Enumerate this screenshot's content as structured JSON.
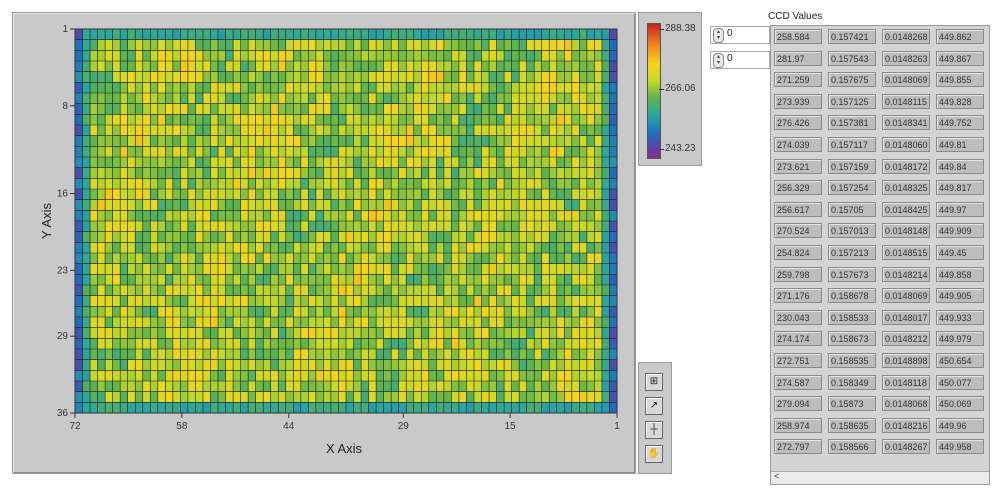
{
  "graph": {
    "x_axis_label": "X Axis",
    "y_axis_label": "Y Axis",
    "x_ticks": [
      "72",
      "58",
      "44",
      "29",
      "15",
      "1"
    ],
    "y_ticks": [
      "1",
      "8",
      "16",
      "23",
      "29",
      "36"
    ],
    "x_range": [
      72,
      1
    ],
    "y_range": [
      1,
      36
    ],
    "cols": 72,
    "rows": 36
  },
  "color_ramp": {
    "max": "288.38",
    "mid": "266.06",
    "min": "243.23",
    "colors": [
      "#c8201f",
      "#ee7a1e",
      "#f5d51d",
      "#c7da29",
      "#5fb44b",
      "#29a5a2",
      "#1f6dc0",
      "#5a43a8",
      "#8c2d8c"
    ]
  },
  "palette": {
    "buttons": [
      {
        "name": "graph-palette-zoom-button",
        "icon": "zoom-icon",
        "glyph": "⊞"
      },
      {
        "name": "graph-palette-pan-button",
        "icon": "pan-icon",
        "glyph": "↗"
      },
      {
        "name": "graph-palette-cursor-button",
        "icon": "cursor-icon",
        "glyph": "┼"
      },
      {
        "name": "graph-palette-hand-button",
        "icon": "hand-icon",
        "glyph": "✋"
      }
    ]
  },
  "index_controls": [
    {
      "value": "0"
    },
    {
      "value": "0"
    }
  ],
  "ccd": {
    "label": "CCD Values",
    "rows": [
      [
        "258.584",
        "0.157421",
        "0.0148268",
        "449.862"
      ],
      [
        "281.97",
        "0.157543",
        "0.0148263",
        "449.867"
      ],
      [
        "271.259",
        "0.157675",
        "0.0148069",
        "449.855"
      ],
      [
        "273.939",
        "0.157125",
        "0.0148115",
        "449.828"
      ],
      [
        "276.426",
        "0.157381",
        "0.0148341",
        "449.752"
      ],
      [
        "274.039",
        "0.157117",
        "0.0148060",
        "449.81"
      ],
      [
        "273.621",
        "0.157159",
        "0.0148172",
        "449.84"
      ],
      [
        "256.329",
        "0.157254",
        "0.0148325",
        "449.817"
      ],
      [
        "256.617",
        "0.15705",
        "0.0148425",
        "449.97"
      ],
      [
        "270.524",
        "0.157013",
        "0.0148148",
        "449.909"
      ],
      [
        "254.824",
        "0.157213",
        "0.0148515",
        "449.45"
      ],
      [
        "259.798",
        "0.157673",
        "0.0148214",
        "449.858"
      ],
      [
        "271.176",
        "0.158678",
        "0.0148069",
        "449.905"
      ],
      [
        "230.043",
        "0.158533",
        "0.0148017",
        "449.933"
      ],
      [
        "274.174",
        "0.158673",
        "0.0148212",
        "449.979"
      ],
      [
        "272.751",
        "0.158535",
        "0.0148898",
        "450.654"
      ],
      [
        "274.587",
        "0.158349",
        "0.0148118",
        "450.077"
      ],
      [
        "279.094",
        "0.15873",
        "0.0148068",
        "450.069"
      ],
      [
        "258.974",
        "0.158635",
        "0.0148216",
        "449.96"
      ],
      [
        "272.797",
        "0.158566",
        "0.0148267",
        "449.958"
      ]
    ],
    "scroll_glyph": "<"
  }
}
